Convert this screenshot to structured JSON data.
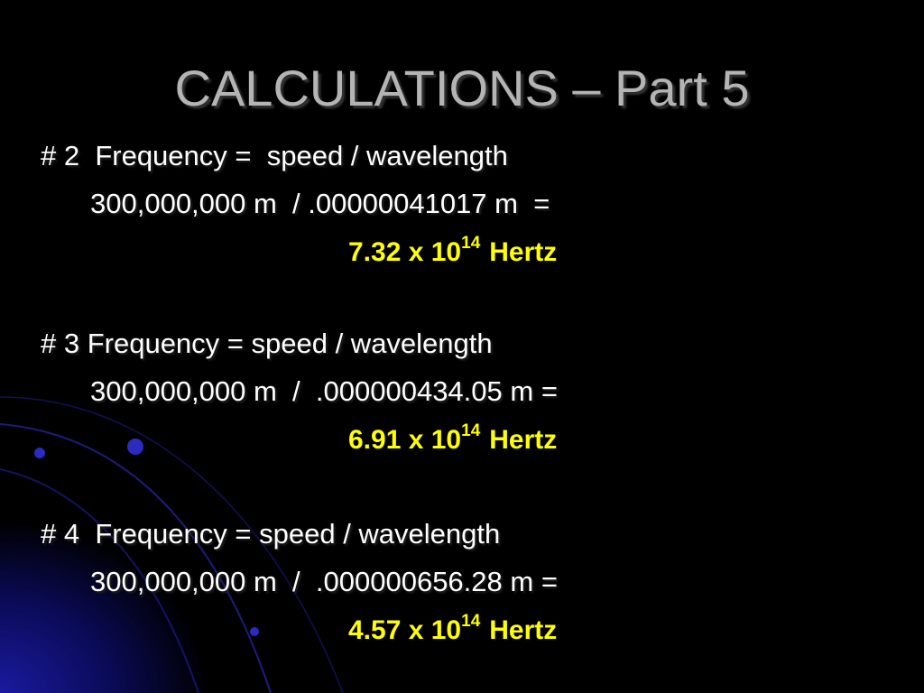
{
  "title": "CALCULATIONS – Part 5",
  "items": [
    {
      "heading": "# 2  Frequency =  speed / wavelength",
      "calculation": "300,000,000 m  / .00000041017 m  =",
      "result": {
        "mantissa": "7.32 x 10",
        "exponent": "14",
        "unit": "Hertz"
      }
    },
    {
      "heading": "# 3 Frequency = speed / wavelength",
      "calculation": "300,000,000 m  /  .000000434.05 m =",
      "result": {
        "mantissa": "6.91 x 10",
        "exponent": "14",
        "unit": "Hertz"
      }
    },
    {
      "heading": "# 4  Frequency = speed / wavelength",
      "calculation": "300,000,000 m  /  .000000656.28 m =",
      "result": {
        "mantissa": "4.57 x 10",
        "exponent": "14",
        "unit": "Hertz"
      }
    }
  ]
}
